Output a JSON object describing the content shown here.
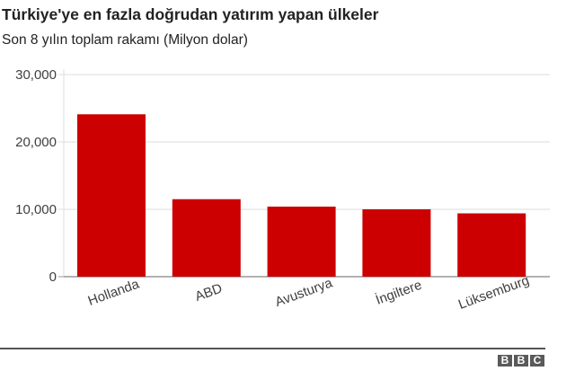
{
  "header": {
    "title": "Türkiye'ye en fazla doğrudan yatırım yapan ülkeler",
    "subtitle": "Son 8 yılın toplam rakamı (Milyon dolar)"
  },
  "chart_data": {
    "type": "bar",
    "title": "Türkiye'ye en fazla doğrudan yatırım yapan ülkeler",
    "subtitle": "Son 8 yılın toplam rakamı (Milyon dolar)",
    "categories": [
      "Hollanda",
      "ABD",
      "Avusturya",
      "İngiltere",
      "Lüksemburg"
    ],
    "values": [
      24100,
      11500,
      10400,
      10000,
      9400
    ],
    "xlabel": "",
    "ylabel": "",
    "ylim": [
      0,
      30000
    ],
    "yticks": [
      0,
      10000,
      20000,
      30000
    ],
    "ytick_labels": [
      "0",
      "10,000",
      "20,000",
      "30,000"
    ],
    "grid": true,
    "legend": "none",
    "bar_color": "#cc0000"
  },
  "footer": {
    "logo": [
      "B",
      "B",
      "C"
    ]
  }
}
